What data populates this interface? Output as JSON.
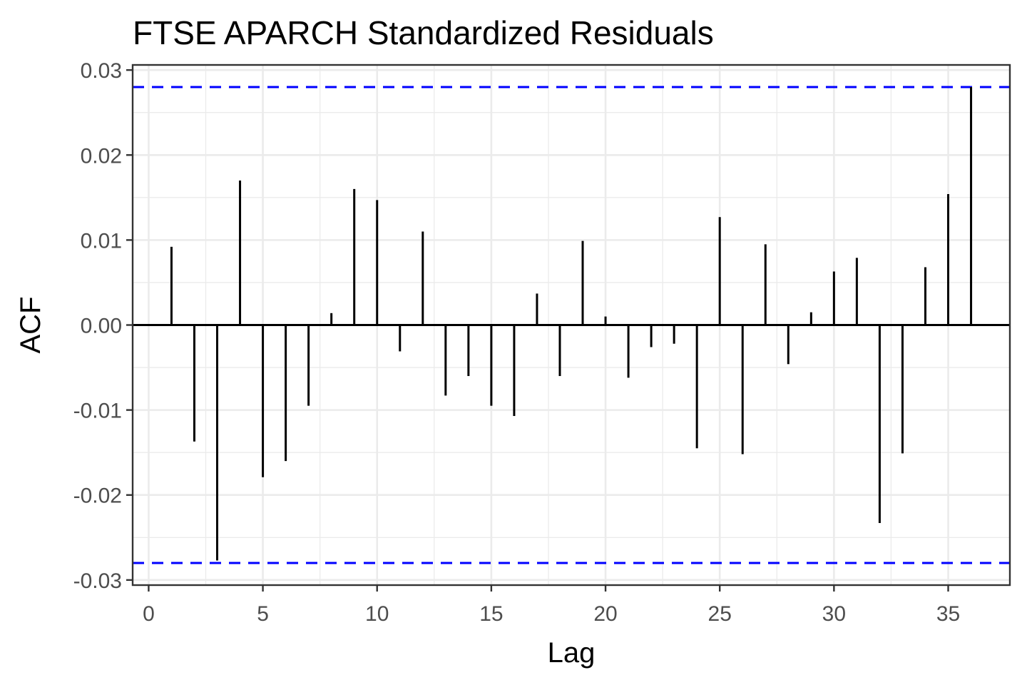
{
  "chart_data": {
    "type": "bar",
    "title": "FTSE APARCH Standardized Residuals",
    "xlabel": "Lag",
    "ylabel": "ACF",
    "xlim": [
      -0.7,
      37.7
    ],
    "ylim": [
      -0.0306,
      0.0306
    ],
    "x_ticks": [
      0,
      5,
      10,
      15,
      20,
      25,
      30,
      35
    ],
    "x_tick_labels": [
      "0",
      "5",
      "10",
      "15",
      "20",
      "25",
      "30",
      "35"
    ],
    "y_ticks": [
      -0.03,
      -0.02,
      -0.01,
      0.0,
      0.01,
      0.02,
      0.03
    ],
    "y_tick_labels": [
      "-0.03",
      "-0.02",
      "-0.01",
      "0.00",
      "0.01",
      "0.02",
      "0.03"
    ],
    "grid": true,
    "confidence_bound": 0.028,
    "x": [
      1,
      2,
      3,
      4,
      5,
      6,
      7,
      8,
      9,
      10,
      11,
      12,
      13,
      14,
      15,
      16,
      17,
      18,
      19,
      20,
      21,
      22,
      23,
      24,
      25,
      26,
      27,
      28,
      29,
      30,
      31,
      32,
      33,
      34,
      35,
      36
    ],
    "values": [
      0.0092,
      -0.0137,
      -0.0277,
      0.017,
      -0.0179,
      -0.016,
      -0.0095,
      0.0014,
      0.016,
      0.0147,
      -0.0031,
      0.011,
      -0.0083,
      -0.006,
      -0.0095,
      -0.0107,
      0.0037,
      -0.006,
      0.0099,
      0.001,
      -0.0062,
      -0.0026,
      -0.0022,
      -0.0145,
      0.0127,
      -0.0152,
      0.0095,
      -0.0046,
      0.0015,
      0.0063,
      0.0079,
      -0.0233,
      -0.0151,
      0.0068,
      0.0154,
      0.028
    ],
    "colors": {
      "bars": "#000000",
      "zero_line": "#000000",
      "bounds": "#0000ff",
      "grid": "#ebebeb",
      "panel_border": "#333333",
      "tick_text": "#4d4d4d"
    }
  }
}
